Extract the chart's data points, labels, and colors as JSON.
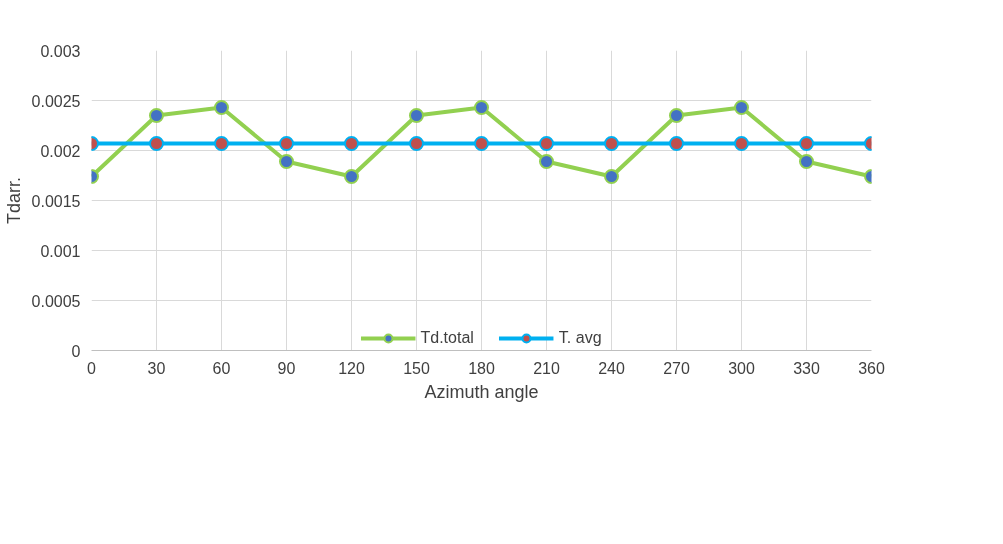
{
  "chart_data": {
    "type": "line",
    "xlabel": "Azimuth angle",
    "ylabel": "Tdarr.",
    "x": [
      0,
      30,
      60,
      90,
      120,
      150,
      180,
      210,
      240,
      270,
      300,
      330,
      360
    ],
    "series": [
      {
        "name": "Td.total",
        "color": "#92d050",
        "values": [
          0.00174,
          0.00235,
          0.00243,
          0.00189,
          0.00174,
          0.00235,
          0.00243,
          0.00189,
          0.00174,
          0.00235,
          0.00243,
          0.00189,
          0.00174
        ]
      },
      {
        "name": "T. avg",
        "color": "#00b0f0",
        "values": [
          0.00207,
          0.00207,
          0.00207,
          0.00207,
          0.00207,
          0.00207,
          0.00207,
          0.00207,
          0.00207,
          0.00207,
          0.00207,
          0.00207,
          0.00207
        ]
      }
    ],
    "xlim": [
      0,
      360
    ],
    "xticks": [
      0,
      30,
      60,
      90,
      120,
      150,
      180,
      210,
      240,
      270,
      300,
      330,
      360
    ],
    "ylim": [
      0,
      0.003
    ],
    "yticks": [
      0,
      0.0005,
      0.001,
      0.0015,
      0.002,
      0.0025,
      0.003
    ],
    "grid": true,
    "legend": "bottom",
    "marker": "circle",
    "line_style": "solid"
  }
}
